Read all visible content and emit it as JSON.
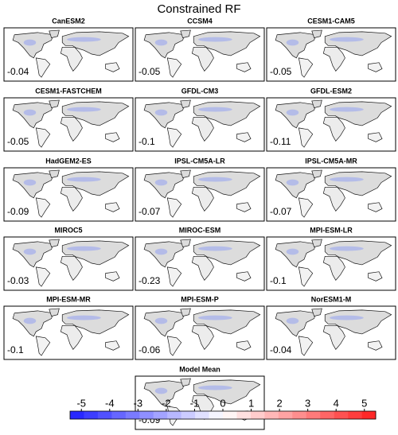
{
  "title": "Constrained RF",
  "panels": [
    {
      "name": "CanESM2",
      "value": -0.04
    },
    {
      "name": "CCSM4",
      "value": -0.05
    },
    {
      "name": "CESM1-CAM5",
      "value": -0.05
    },
    {
      "name": "CESM1-FASTCHEM",
      "value": -0.05
    },
    {
      "name": "GFDL-CM3",
      "value": -0.1
    },
    {
      "name": "GFDL-ESM2",
      "value": -0.11
    },
    {
      "name": "HadGEM2-ES",
      "value": -0.09
    },
    {
      "name": "IPSL-CM5A-LR",
      "value": -0.07
    },
    {
      "name": "IPSL-CM5A-MR",
      "value": -0.07
    },
    {
      "name": "MIROC5",
      "value": -0.03
    },
    {
      "name": "MIROC-ESM",
      "value": -0.23
    },
    {
      "name": "MPI-ESM-LR",
      "value": -0.1
    },
    {
      "name": "MPI-ESM-MR",
      "value": -0.1
    },
    {
      "name": "MPI-ESM-P",
      "value": -0.06
    },
    {
      "name": "NorESM1-M",
      "value": -0.04
    },
    {
      "name": "Model Mean",
      "value": -0.09
    }
  ],
  "colorbar": {
    "lim": [
      -5.4,
      5.4
    ],
    "ticks": [
      -5,
      -4,
      -3,
      -2,
      -1,
      0,
      1,
      2,
      3,
      4,
      5
    ],
    "colors": [
      "#1e1eff",
      "#ffffff",
      "#ff1e1e"
    ]
  }
}
